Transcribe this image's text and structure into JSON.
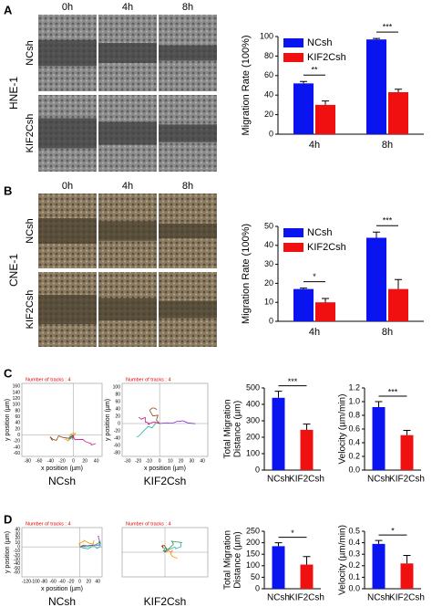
{
  "panel_labels": [
    "A",
    "B",
    "C",
    "D"
  ],
  "micrographs": [
    {
      "cell_line": "HNE-1",
      "columns": [
        "0h",
        "4h",
        "8h"
      ],
      "rows": [
        "NCsh",
        "KIF2Csh"
      ]
    },
    {
      "cell_line": "CNE-1",
      "columns": [
        "0h",
        "4h",
        "8h"
      ],
      "rows": [
        "NCsh",
        "KIF2Csh"
      ]
    }
  ],
  "chart_data": [
    {
      "type": "grouped-bar",
      "ylabel": "Migration Rate (100%)",
      "categories": [
        "4h",
        "8h"
      ],
      "series": [
        {
          "name": "NCsh",
          "color": "#0a14f0",
          "values": [
            52,
            97
          ],
          "errors": [
            2,
            1
          ]
        },
        {
          "name": "KIF2Csh",
          "color": "#f01010",
          "values": [
            30,
            43
          ],
          "errors": [
            4,
            3
          ]
        }
      ],
      "annotations": [
        "**",
        "***"
      ],
      "ylim": [
        0,
        100
      ],
      "yticks": [
        0,
        20,
        40,
        60,
        80,
        100
      ],
      "legend": "top-left"
    },
    {
      "type": "grouped-bar",
      "ylabel": "Migration Rate (100%)",
      "categories": [
        "4h",
        "8h"
      ],
      "series": [
        {
          "name": "NCsh",
          "color": "#0a14f0",
          "values": [
            17,
            44
          ],
          "errors": [
            0.5,
            3
          ]
        },
        {
          "name": "KIF2Csh",
          "color": "#f01010",
          "values": [
            10,
            17
          ],
          "errors": [
            2,
            5
          ]
        }
      ],
      "annotations": [
        "*",
        "***"
      ],
      "ylim": [
        0,
        50
      ],
      "yticks": [
        0,
        10,
        20,
        30,
        40,
        50
      ],
      "legend": "top-left"
    },
    {
      "type": "track",
      "annotation": "Number of tracks : 4",
      "label": "NCsh",
      "xlabel": "x position (µm)",
      "ylabel": "y position (µm)",
      "xlim": [
        -90,
        50
      ],
      "ylim": [
        -70,
        170
      ],
      "xticks": [
        -80,
        -60,
        -40,
        -20,
        0,
        20,
        40
      ],
      "yticks": [
        -60,
        -40,
        -20,
        0,
        20,
        40,
        60,
        80,
        100,
        120,
        140,
        160
      ]
    },
    {
      "type": "track",
      "annotation": "Number of tracks : 4",
      "label": "KIF2Csh",
      "xlabel": "x position (µm)",
      "ylabel": "y position (µm)",
      "xlim": [
        -35,
        45
      ],
      "ylim": [
        -90,
        110
      ],
      "xticks": [
        -30,
        -20,
        -10,
        0,
        10,
        20,
        30,
        40
      ],
      "yticks": [
        -80,
        -60,
        -40,
        -20,
        0,
        20,
        40,
        60,
        80,
        100
      ]
    },
    {
      "type": "bar",
      "ylabel": [
        "Total Migration",
        "Distance (µm)"
      ],
      "categories": [
        "NCsh",
        "KIF2Csh"
      ],
      "colors": [
        "#0a14f0",
        "#f01010"
      ],
      "values": [
        440,
        245
      ],
      "errors": [
        40,
        35
      ],
      "annotation": "***",
      "ylim": [
        0,
        500
      ],
      "yticks": [
        0,
        100,
        200,
        300,
        400,
        500
      ]
    },
    {
      "type": "bar",
      "ylabel": [
        "Velocity (µm/min)"
      ],
      "categories": [
        "NCsh",
        "KIF2Csh"
      ],
      "colors": [
        "#0a14f0",
        "#f01010"
      ],
      "values": [
        0.92,
        0.51
      ],
      "errors": [
        0.08,
        0.07
      ],
      "annotation": "***",
      "ylim": [
        0,
        1.2
      ],
      "yticks": [
        {
          "value": 0,
          "label": "0.0"
        },
        {
          "value": 0.2,
          "label": "0.2"
        },
        {
          "value": 0.4,
          "label": "0.4"
        },
        {
          "value": 0.6,
          "label": "0.6"
        },
        {
          "value": 0.8,
          "label": "0.8"
        },
        {
          "value": 1,
          "label": "1.0"
        },
        {
          "value": 1.2,
          "label": "1.2"
        }
      ]
    },
    {
      "type": "track",
      "annotation": "Number of tracks : 4",
      "label": "NCsh",
      "xlabel": "x position (µm)",
      "ylabel": "y position (µm)",
      "xlim": [
        -130,
        50
      ],
      "ylim": [
        -70,
        45
      ],
      "xticks": [
        -120,
        -100,
        -80,
        -60,
        -40,
        -20,
        0,
        20,
        40
      ],
      "yticks": [
        -60,
        -50,
        -40,
        -30,
        -20,
        -10,
        0,
        10,
        20,
        30,
        40
      ]
    },
    {
      "type": "track",
      "annotation": "Number of tracks : 4",
      "label": "KIF2Csh"
    },
    {
      "type": "bar",
      "ylabel": [
        "Total Migration",
        "Distance (µm)"
      ],
      "categories": [
        "NCsh",
        "KIF2Csh"
      ],
      "colors": [
        "#0a14f0",
        "#f01010"
      ],
      "values": [
        185,
        105
      ],
      "errors": [
        15,
        35
      ],
      "annotation": "*",
      "ylim": [
        0,
        250
      ],
      "yticks": [
        0,
        50,
        100,
        150,
        200,
        250
      ]
    },
    {
      "type": "bar",
      "ylabel": [
        "Velocity (µm/min)"
      ],
      "categories": [
        "NCsh",
        "KIF2Csh"
      ],
      "colors": [
        "#0a14f0",
        "#f01010"
      ],
      "values": [
        0.39,
        0.22
      ],
      "errors": [
        0.03,
        0.07
      ],
      "annotation": "*",
      "ylim": [
        0,
        0.5
      ],
      "yticks": [
        {
          "value": 0,
          "label": "0.0"
        },
        {
          "value": 0.1,
          "label": "0.1"
        },
        {
          "value": 0.2,
          "label": "0.2"
        },
        {
          "value": 0.3,
          "label": "0.3"
        },
        {
          "value": 0.4,
          "label": "0.4"
        },
        {
          "value": 0.5,
          "label": "0.5"
        }
      ]
    }
  ]
}
